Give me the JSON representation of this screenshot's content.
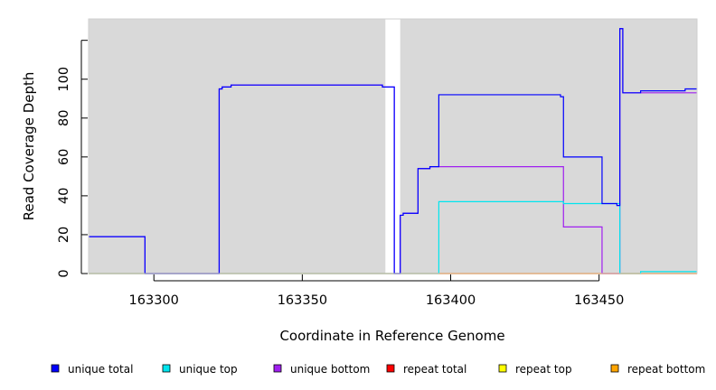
{
  "chart_data": {
    "type": "line",
    "xlabel": "Coordinate in Reference Genome",
    "ylabel": "Read Coverage Depth",
    "xlim": [
      163278,
      163483
    ],
    "ylim": [
      0,
      131
    ],
    "x_ticks": [
      163300,
      163350,
      163400,
      163450
    ],
    "y_ticks": [
      0,
      20,
      40,
      60,
      80,
      100
    ],
    "background_color": "#d9d9d9",
    "gaps": [
      [
        163378,
        163383
      ]
    ],
    "legend_position": "bottom",
    "series": [
      {
        "name": "unique total",
        "color": "#0000ff",
        "points": [
          [
            163278,
            19
          ],
          [
            163297,
            19
          ],
          [
            163297,
            0
          ],
          [
            163322,
            0
          ],
          [
            163322,
            95
          ],
          [
            163323,
            95
          ],
          [
            163323,
            96
          ],
          [
            163326,
            96
          ],
          [
            163326,
            97
          ],
          [
            163377,
            97
          ],
          [
            163377,
            96
          ],
          [
            163381,
            96
          ],
          [
            163381,
            0
          ],
          [
            163383,
            0
          ],
          [
            163383,
            30
          ],
          [
            163384,
            30
          ],
          [
            163384,
            31
          ],
          [
            163389,
            31
          ],
          [
            163389,
            54
          ],
          [
            163393,
            54
          ],
          [
            163393,
            55
          ],
          [
            163396,
            55
          ],
          [
            163396,
            92
          ],
          [
            163437,
            92
          ],
          [
            163437,
            91
          ],
          [
            163438,
            91
          ],
          [
            163438,
            60
          ],
          [
            163451,
            60
          ],
          [
            163451,
            36
          ],
          [
            163456,
            36
          ],
          [
            163456,
            35
          ],
          [
            163457,
            35
          ],
          [
            163457,
            126
          ],
          [
            163458,
            126
          ],
          [
            163458,
            93
          ],
          [
            163464,
            93
          ],
          [
            163464,
            94
          ],
          [
            163479,
            94
          ],
          [
            163479,
            95
          ],
          [
            163483,
            95
          ]
        ]
      },
      {
        "name": "unique top",
        "color": "#00e5ee",
        "points": [
          [
            163278,
            0
          ],
          [
            163396,
            0
          ],
          [
            163396,
            37
          ],
          [
            163438,
            37
          ],
          [
            163438,
            36
          ],
          [
            163457,
            36
          ],
          [
            163457,
            0
          ],
          [
            163464,
            0
          ],
          [
            163464,
            1
          ],
          [
            163483,
            1
          ]
        ]
      },
      {
        "name": "unique bottom",
        "color": "#a020f0",
        "points": [
          [
            163278,
            19
          ],
          [
            163297,
            19
          ],
          [
            163297,
            0
          ],
          [
            163322,
            0
          ],
          [
            163322,
            95
          ],
          [
            163323,
            95
          ],
          [
            163323,
            96
          ],
          [
            163326,
            96
          ],
          [
            163326,
            97
          ],
          [
            163377,
            97
          ],
          [
            163377,
            96
          ],
          [
            163381,
            96
          ],
          [
            163381,
            0
          ],
          [
            163383,
            0
          ],
          [
            163383,
            30
          ],
          [
            163384,
            30
          ],
          [
            163384,
            31
          ],
          [
            163389,
            31
          ],
          [
            163389,
            54
          ],
          [
            163393,
            54
          ],
          [
            163393,
            55
          ],
          [
            163438,
            55
          ],
          [
            163438,
            24
          ],
          [
            163451,
            24
          ],
          [
            163451,
            0
          ],
          [
            163457,
            0
          ],
          [
            163457,
            126
          ],
          [
            163458,
            126
          ],
          [
            163458,
            93
          ],
          [
            163483,
            93
          ]
        ]
      },
      {
        "name": "repeat total",
        "color": "#ff0000",
        "points": [
          [
            163278,
            0
          ],
          [
            163483,
            0
          ]
        ]
      },
      {
        "name": "repeat top",
        "color": "#ffff00",
        "points": [
          [
            163278,
            0
          ],
          [
            163483,
            0
          ]
        ]
      },
      {
        "name": "repeat bottom",
        "color": "#ffa500",
        "points": [
          [
            163396,
            0
          ],
          [
            163483,
            0
          ]
        ]
      }
    ]
  }
}
